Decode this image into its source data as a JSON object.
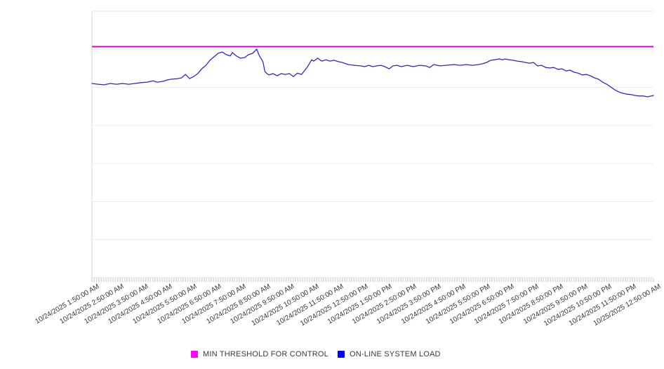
{
  "chart_data": {
    "type": "line",
    "title": "",
    "x_axis": {
      "start": "10/24/2025 1:50:00 AM",
      "end": "10/25/2025 12:50:00 AM",
      "minutes_span": 1380,
      "tick_labels": [
        "10/24/2025 1:50:00 AM",
        "10/24/2025 2:50:00 AM",
        "10/24/2025 3:50:00 AM",
        "10/24/2025 4:50:00 AM",
        "10/24/2025 5:50:00 AM",
        "10/24/2025 6:50:00 AM",
        "10/24/2025 7:50:00 AM",
        "10/24/2025 8:50:00 AM",
        "10/24/2025 9:50:00 AM",
        "10/24/2025 10:50:00 AM",
        "10/24/2025 11:50:00 AM",
        "10/24/2025 12:50:00 PM",
        "10/24/2025 1:50:00 PM",
        "10/24/2025 2:50:00 PM",
        "10/24/2025 3:50:00 PM",
        "10/24/2025 4:50:00 PM",
        "10/24/2025 5:50:00 PM",
        "10/24/2025 6:50:00 PM",
        "10/24/2025 7:50:00 PM",
        "10/24/2025 8:50:00 PM",
        "10/24/2025 9:50:00 PM",
        "10/24/2025 10:50:00 PM",
        "10/24/2025 11:50:00 PM",
        "10/25/2025 12:50:00 AM"
      ]
    },
    "y_axis": {
      "ylim": [
        0,
        100
      ],
      "tick_labels_visible": false,
      "grid": true,
      "grid_divisions": 7
    },
    "series": [
      {
        "name": "MIN THRESHOLD FOR CONTROL",
        "type": "threshold-line",
        "legend_color": "#FF00FF",
        "stroke": "#DB00DB",
        "value": 86.7
      },
      {
        "name": "ON-LINE SYSTEM LOAD",
        "type": "line",
        "legend_color": "#0000FF",
        "stroke": "#2A2AC8",
        "points": [
          [
            0,
            72.9
          ],
          [
            15,
            72.6
          ],
          [
            30,
            72.4
          ],
          [
            45,
            72.9
          ],
          [
            60,
            72.6
          ],
          [
            75,
            72.9
          ],
          [
            90,
            72.6
          ],
          [
            105,
            72.9
          ],
          [
            120,
            73.2
          ],
          [
            135,
            73.4
          ],
          [
            150,
            73.9
          ],
          [
            160,
            73.4
          ],
          [
            175,
            73.7
          ],
          [
            185,
            74.2
          ],
          [
            195,
            74.5
          ],
          [
            210,
            74.7
          ],
          [
            220,
            75.0
          ],
          [
            230,
            76.3
          ],
          [
            240,
            74.7
          ],
          [
            250,
            75.5
          ],
          [
            260,
            76.6
          ],
          [
            270,
            78.4
          ],
          [
            280,
            79.7
          ],
          [
            290,
            81.6
          ],
          [
            300,
            82.9
          ],
          [
            310,
            84.2
          ],
          [
            320,
            84.7
          ],
          [
            330,
            83.7
          ],
          [
            340,
            83.2
          ],
          [
            345,
            84.5
          ],
          [
            355,
            83.2
          ],
          [
            365,
            82.4
          ],
          [
            375,
            82.6
          ],
          [
            385,
            83.7
          ],
          [
            395,
            84.2
          ],
          [
            405,
            85.8
          ],
          [
            410,
            83.7
          ],
          [
            415,
            82.4
          ],
          [
            420,
            81.1
          ],
          [
            425,
            77.4
          ],
          [
            430,
            76.6
          ],
          [
            435,
            76.1
          ],
          [
            445,
            76.6
          ],
          [
            455,
            75.8
          ],
          [
            465,
            76.6
          ],
          [
            475,
            76.3
          ],
          [
            485,
            76.6
          ],
          [
            495,
            75.5
          ],
          [
            505,
            76.8
          ],
          [
            515,
            76.3
          ],
          [
            525,
            78.2
          ],
          [
            530,
            79.2
          ],
          [
            535,
            80.5
          ],
          [
            540,
            81.8
          ],
          [
            545,
            81.3
          ],
          [
            555,
            82.4
          ],
          [
            560,
            81.8
          ],
          [
            565,
            81.3
          ],
          [
            575,
            81.8
          ],
          [
            585,
            81.3
          ],
          [
            595,
            81.6
          ],
          [
            605,
            81.1
          ],
          [
            615,
            80.8
          ],
          [
            630,
            80.0
          ],
          [
            645,
            79.7
          ],
          [
            660,
            79.5
          ],
          [
            670,
            79.2
          ],
          [
            680,
            79.7
          ],
          [
            690,
            79.2
          ],
          [
            700,
            79.5
          ],
          [
            710,
            79.7
          ],
          [
            720,
            79.2
          ],
          [
            730,
            78.4
          ],
          [
            740,
            79.5
          ],
          [
            750,
            79.7
          ],
          [
            760,
            79.2
          ],
          [
            775,
            79.7
          ],
          [
            790,
            79.2
          ],
          [
            805,
            79.7
          ],
          [
            820,
            79.5
          ],
          [
            830,
            78.9
          ],
          [
            840,
            80.0
          ],
          [
            855,
            79.5
          ],
          [
            870,
            79.7
          ],
          [
            890,
            80.0
          ],
          [
            905,
            79.7
          ],
          [
            920,
            80.0
          ],
          [
            935,
            79.7
          ],
          [
            950,
            80.0
          ],
          [
            960,
            80.3
          ],
          [
            970,
            80.8
          ],
          [
            980,
            81.6
          ],
          [
            990,
            81.8
          ],
          [
            1000,
            82.1
          ],
          [
            1010,
            81.8
          ],
          [
            1015,
            82.1
          ],
          [
            1025,
            81.8
          ],
          [
            1035,
            81.6
          ],
          [
            1045,
            81.3
          ],
          [
            1055,
            81.1
          ],
          [
            1065,
            80.8
          ],
          [
            1075,
            80.5
          ],
          [
            1085,
            80.8
          ],
          [
            1095,
            79.5
          ],
          [
            1105,
            79.7
          ],
          [
            1115,
            78.9
          ],
          [
            1125,
            78.7
          ],
          [
            1135,
            78.9
          ],
          [
            1145,
            78.2
          ],
          [
            1155,
            78.4
          ],
          [
            1165,
            77.6
          ],
          [
            1175,
            77.9
          ],
          [
            1185,
            77.1
          ],
          [
            1195,
            76.8
          ],
          [
            1205,
            76.1
          ],
          [
            1215,
            76.3
          ],
          [
            1225,
            75.8
          ],
          [
            1235,
            75.0
          ],
          [
            1245,
            74.5
          ],
          [
            1255,
            73.4
          ],
          [
            1265,
            72.6
          ],
          [
            1275,
            71.6
          ],
          [
            1285,
            70.5
          ],
          [
            1295,
            69.7
          ],
          [
            1305,
            69.2
          ],
          [
            1315,
            68.9
          ],
          [
            1325,
            68.7
          ],
          [
            1335,
            68.4
          ],
          [
            1345,
            68.2
          ],
          [
            1355,
            68.2
          ],
          [
            1365,
            67.9
          ],
          [
            1375,
            68.2
          ],
          [
            1380,
            68.4
          ]
        ]
      }
    ],
    "legend": {
      "position": "bottom"
    }
  }
}
